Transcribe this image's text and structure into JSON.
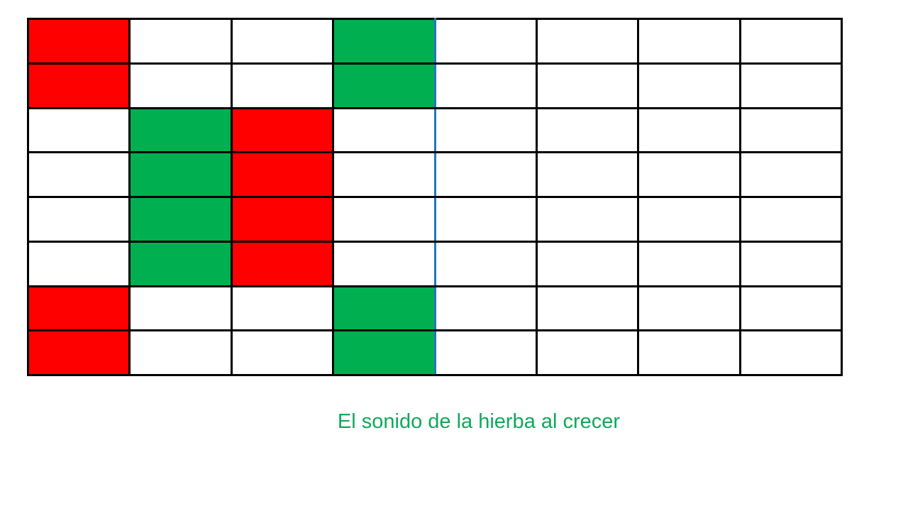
{
  "colors": {
    "background": "#FFFFFF",
    "grid_line": "#000000",
    "divider_line": "#2077BE",
    "caption_text": "#0FA95B",
    "cells": {
      "R": "#FF0000",
      "G": "#00B050",
      "W": "#FFFFFF"
    }
  },
  "grid": {
    "columns": 8,
    "rows_count": 8,
    "divider_after_column": 4,
    "legend": {
      "R": "red-cell",
      "G": "green-cell",
      "W": "white-cell"
    },
    "rows": [
      [
        "R",
        "W",
        "W",
        "G",
        "W",
        "W",
        "W",
        "W"
      ],
      [
        "R",
        "W",
        "W",
        "G",
        "W",
        "W",
        "W",
        "W"
      ],
      [
        "W",
        "G",
        "R",
        "W",
        "W",
        "W",
        "W",
        "W"
      ],
      [
        "W",
        "G",
        "R",
        "W",
        "W",
        "W",
        "W",
        "W"
      ],
      [
        "W",
        "G",
        "R",
        "W",
        "W",
        "W",
        "W",
        "W"
      ],
      [
        "W",
        "G",
        "R",
        "W",
        "W",
        "W",
        "W",
        "W"
      ],
      [
        "R",
        "W",
        "W",
        "G",
        "W",
        "W",
        "W",
        "W"
      ],
      [
        "R",
        "W",
        "W",
        "G",
        "W",
        "W",
        "W",
        "W"
      ]
    ]
  },
  "caption": {
    "text": "El sonido de la hierba al crecer"
  }
}
